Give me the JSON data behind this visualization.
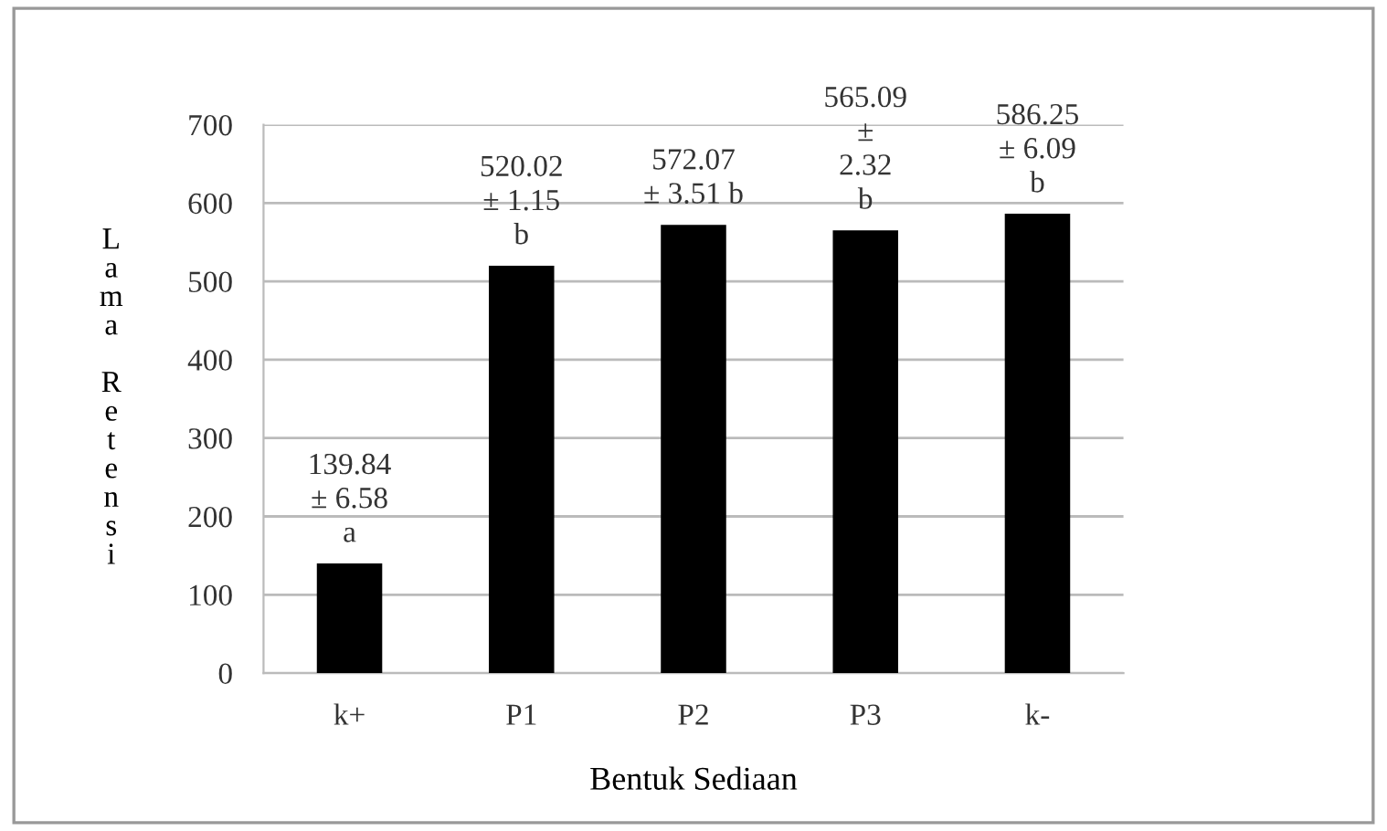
{
  "chart_data": {
    "type": "bar",
    "xlabel": "Bentuk Sediaan",
    "ylabel": "Lama Retensi",
    "categories": [
      "k+",
      "P1",
      "P2",
      "P3",
      "k-"
    ],
    "values": [
      139.84,
      520.02,
      572.07,
      565.09,
      586.25
    ],
    "color": "#000000",
    "value_labels": [
      "139.84\n± 6.58\na",
      "520.02\n± 1.15\nb",
      "572.07\n± 3.51 b",
      "565.09\n±\n2.32\nb",
      "586.25\n± 6.09\nb"
    ],
    "ylim": [
      0,
      700
    ],
    "yticks": [
      0,
      100,
      200,
      300,
      400,
      500,
      600,
      700
    ],
    "grid": "y"
  }
}
